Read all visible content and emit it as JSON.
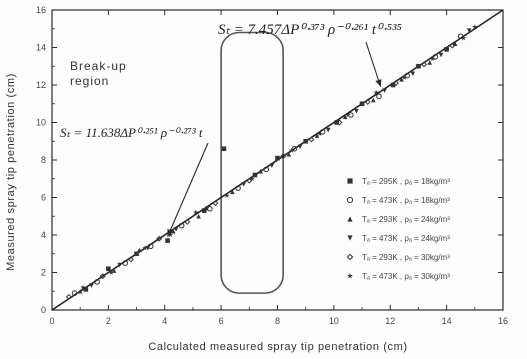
{
  "chart_data": {
    "type": "scatter",
    "xlabel": "Calculated measured spray tip penetration (cm)",
    "ylabel": "Measured spray tip penetration (cm)",
    "xlim": [
      0,
      16
    ],
    "ylim": [
      0,
      16
    ],
    "x_ticks": [
      "0",
      "2",
      "4",
      "6",
      "8",
      "10",
      "12",
      "14",
      "16"
    ],
    "y_ticks": [
      "0",
      "2",
      "4",
      "6",
      "8",
      "10",
      "12",
      "14",
      "16"
    ],
    "grid": false,
    "legend_position": "right",
    "reference_line": {
      "x": [
        0,
        16
      ],
      "y": [
        0,
        16
      ]
    },
    "breakup_box_x": [
      6.0,
      8.2
    ],
    "breakup_box_y": [
      0.9,
      14.8
    ],
    "annotations": {
      "region_label": [
        "Break-up",
        "region"
      ],
      "equation_upper": "Sₜ = 7.457ΔP⁰⋅³⁷³ ρ⁻⁰⋅²⁶¹ t⁰⋅⁵³⁵",
      "equation_lower": "Sₜ = 11.638ΔP⁰⋅²⁵¹ ρ⁻⁰⋅²⁷³ t"
    },
    "series": [
      {
        "name": "Tₐ = 295K ,  ρₐ = 18kg/m³",
        "marker": "square",
        "x": [
          1.2,
          2.0,
          3.0,
          4.1,
          5.4,
          6.1,
          7.2,
          8.0,
          9.0,
          10.1,
          11.0,
          12.1,
          13.0,
          14.0
        ],
        "y": [
          1.1,
          2.2,
          3.0,
          3.7,
          5.3,
          8.6,
          7.2,
          8.1,
          9.0,
          10.0,
          11.0,
          12.0,
          13.0,
          13.9
        ]
      },
      {
        "name": "Tₐ = 473K ,  ρₐ = 18kg/m³",
        "marker": "circle",
        "x": [
          0.8,
          1.6,
          2.6,
          3.5,
          4.6,
          5.6,
          6.6,
          7.6,
          8.6,
          9.6,
          10.6,
          11.6,
          12.6,
          13.6,
          14.5
        ],
        "y": [
          0.9,
          1.5,
          2.5,
          3.4,
          4.5,
          5.4,
          6.5,
          7.5,
          8.6,
          9.5,
          10.4,
          11.4,
          12.5,
          13.5,
          14.6
        ]
      },
      {
        "name": "Tₐ = 293K ,  ρₐ = 24kg/m³",
        "marker": "triangle-up",
        "x": [
          1.0,
          2.2,
          3.1,
          4.3,
          5.2,
          6.4,
          7.4,
          8.4,
          9.4,
          10.4,
          11.4,
          12.4,
          13.4,
          14.3
        ],
        "y": [
          1.0,
          2.1,
          3.2,
          4.2,
          5.0,
          6.3,
          7.4,
          8.3,
          9.3,
          10.3,
          11.2,
          12.3,
          13.2,
          14.2
        ]
      },
      {
        "name": "Tₐ = 473K ,  ρₐ = 24kg/m³",
        "marker": "triangle-down",
        "x": [
          1.4,
          2.4,
          3.4,
          4.4,
          5.5,
          6.8,
          7.8,
          8.8,
          9.8,
          10.8,
          11.8,
          12.8,
          13.8,
          14.8
        ],
        "y": [
          1.3,
          2.4,
          3.3,
          4.3,
          5.4,
          6.7,
          7.7,
          8.7,
          9.6,
          10.6,
          11.7,
          12.6,
          13.6,
          14.9
        ]
      },
      {
        "name": "Tₐ = 293K ,  ρₐ = 30kg/m³",
        "marker": "diamond",
        "x": [
          0.6,
          1.8,
          2.8,
          3.8,
          4.8,
          5.8,
          7.0,
          8.2,
          9.2,
          10.2,
          11.2,
          12.2,
          13.2,
          14.2
        ],
        "y": [
          0.7,
          1.8,
          2.7,
          3.8,
          4.7,
          5.7,
          6.9,
          8.2,
          9.1,
          10.0,
          11.1,
          12.1,
          13.1,
          14.1
        ]
      },
      {
        "name": "Tₐ = 473K ,  ρₐ = 30kg/m³",
        "marker": "star",
        "x": [
          1.1,
          2.1,
          3.3,
          4.2,
          5.1,
          6.2,
          7.1,
          8.5,
          9.5,
          10.5,
          11.5,
          12.5,
          13.5,
          14.6,
          15.0
        ],
        "y": [
          1.2,
          2.0,
          3.3,
          4.0,
          5.2,
          6.1,
          7.0,
          8.5,
          9.4,
          10.4,
          11.6,
          12.4,
          13.4,
          14.5,
          15.1
        ]
      }
    ]
  },
  "colors": {
    "ink": "#2a2a2a",
    "marker": "#333333",
    "line": "#222222",
    "box": "#555555"
  }
}
